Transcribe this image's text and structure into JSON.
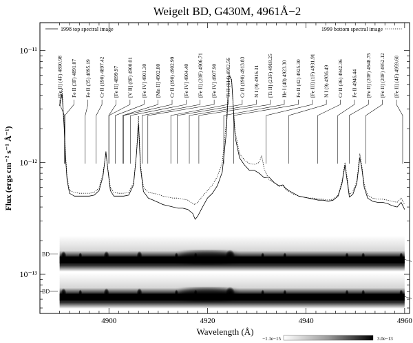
{
  "chart_data": {
    "type": "line",
    "title": "Weigelt BD, G430M, 4961Å−2",
    "xlabel": "Wavelength (Å)",
    "ylabel": "Flux (ergs cm⁻² s⁻¹ Å⁻¹)",
    "xlim": [
      4886,
      4961
    ],
    "ylim_log10": [
      -13.35,
      -10.75
    ],
    "y_log_scale": true,
    "x_ticks": [
      4900,
      4920,
      4940,
      4960
    ],
    "y_ticks": [
      {
        "label": "10⁻¹¹",
        "value": 1e-11
      },
      {
        "label": "10⁻¹²",
        "value": 1e-12
      },
      {
        "label": "10⁻¹³",
        "value": 1e-13
      }
    ],
    "legend": {
      "left": "1998 top spectral image",
      "right": "1999 bottom spectral image",
      "placement": "top"
    },
    "series": [
      {
        "name": "1998 top spectral image",
        "style": "solid",
        "x": [
          4890.0,
          4890.5,
          4890.9,
          4891.2,
          4891.5,
          4892,
          4893,
          4894,
          4895,
          4896,
          4897,
          4898,
          4898.8,
          4899.4,
          4899.8,
          4900.3,
          4901,
          4902,
          4903,
          4904,
          4905,
          4905.6,
          4906.0,
          4906.4,
          4907,
          4908,
          4909,
          4910,
          4911,
          4912,
          4913,
          4914,
          4915,
          4916,
          4917,
          4917.5,
          4918,
          4919,
          4920,
          4921,
          4922,
          4923,
          4923.8,
          4924.4,
          4924.9,
          4925.6,
          4926.5,
          4927.5,
          4928.5,
          4929.5,
          4930.5,
          4931.5,
          4932.5,
          4933.5,
          4934.5,
          4935.3,
          4935.8,
          4936.5,
          4937.5,
          4938.5,
          4939.5,
          4940.5,
          4941.5,
          4942.5,
          4943.5,
          4944.5,
          4945.5,
          4946.5,
          4947.3,
          4947.9,
          4948.3,
          4948.8,
          4949.5,
          4950.3,
          4950.9,
          4951.3,
          4951.8,
          4952.5,
          4953.5,
          4954.5,
          4955.5,
          4956.5,
          4957.5,
          4958.5,
          4959.3,
          4960
        ],
        "y": [
          3.2e-12,
          4.1e-12,
          2.1e-12,
          1.1e-12,
          7e-13,
          5.3e-13,
          5e-13,
          5e-13,
          5e-13,
          5e-13,
          5.1e-13,
          5.6e-13,
          7.5e-13,
          1.25e-12,
          8.5e-13,
          5.6e-13,
          5e-13,
          5e-13,
          5e-13,
          5.1e-13,
          6.3e-13,
          1.2e-12,
          2.2e-12,
          9e-13,
          5.5e-13,
          4.8e-13,
          4.6e-13,
          4.4e-13,
          4.2e-13,
          4.1e-13,
          4e-13,
          3.9e-13,
          3.9e-13,
          3.8e-13,
          3.5e-13,
          3.1e-13,
          3.3e-13,
          4e-13,
          4.8e-13,
          5.3e-13,
          6.2e-13,
          8.2e-13,
          1.8e-12,
          6e-12,
          5.5e-12,
          1.7e-12,
          1.1e-12,
          9.5e-13,
          8.5e-13,
          8.5e-13,
          8e-13,
          7.3e-13,
          7.4e-13,
          6.6e-13,
          6.2e-13,
          6.3e-13,
          5.9e-13,
          5.6e-13,
          5.3e-13,
          5e-13,
          4.9e-13,
          4.8e-13,
          4.7e-13,
          4.6e-13,
          4.6e-13,
          4.5e-13,
          4.6e-13,
          5e-13,
          6.5e-13,
          9.5e-13,
          7e-13,
          4.9e-13,
          5.2e-13,
          6.5e-13,
          1.1e-12,
          9e-13,
          6e-13,
          4.8e-13,
          4.5e-13,
          4.4e-13,
          4.4e-13,
          4.3e-13,
          4.1e-13,
          4e-13,
          4.4e-13,
          3.8e-13
        ]
      },
      {
        "name": "1999 bottom spectral image",
        "style": "dotted",
        "x": [
          4890.0,
          4890.5,
          4890.9,
          4891.2,
          4891.5,
          4892,
          4893,
          4894,
          4895,
          4896,
          4897,
          4898,
          4898.8,
          4899.4,
          4899.8,
          4900.3,
          4901,
          4902,
          4903,
          4904,
          4905,
          4905.6,
          4906.0,
          4906.4,
          4907,
          4908,
          4909,
          4910,
          4911,
          4912,
          4913,
          4914,
          4915,
          4916,
          4917,
          4917.5,
          4918,
          4919,
          4920,
          4921,
          4922,
          4923,
          4923.8,
          4924.4,
          4924.9,
          4925.6,
          4926.5,
          4927.5,
          4928.5,
          4929.5,
          4930.5,
          4931.0,
          4931.5,
          4932.5,
          4933.5,
          4934.5,
          4935.3,
          4935.8,
          4936.5,
          4937.5,
          4938.5,
          4939.5,
          4940.5,
          4941.5,
          4942.5,
          4943.5,
          4944.5,
          4945.5,
          4946.5,
          4947.3,
          4947.9,
          4948.3,
          4948.8,
          4949.5,
          4950.3,
          4950.9,
          4951.3,
          4951.8,
          4952.5,
          4953.5,
          4954.5,
          4955.5,
          4956.5,
          4957.5,
          4958.5,
          4959.3,
          4960
        ],
        "y": [
          3.3e-12,
          4.6e-12,
          2.2e-12,
          1.2e-12,
          7.5e-13,
          5.6e-13,
          5.4e-13,
          5.3e-13,
          5.3e-13,
          5.3e-13,
          5.4e-13,
          5.9e-13,
          8e-13,
          1.2e-12,
          8.8e-13,
          6e-13,
          5.4e-13,
          5.3e-13,
          5.3e-13,
          5.4e-13,
          6.6e-13,
          1.2e-12,
          2.6e-12,
          9.5e-13,
          6e-13,
          5.4e-13,
          5.3e-13,
          5.2e-13,
          5e-13,
          4.9e-13,
          4.8e-13,
          4.8e-13,
          4.7e-13,
          4.6e-13,
          4.3e-13,
          4.2e-13,
          4.4e-13,
          5e-13,
          5.6e-13,
          6.3e-13,
          7.5e-13,
          1e-12,
          2.2e-12,
          6.3e-12,
          5.3e-12,
          1.9e-12,
          1.2e-12,
          1.05e-12,
          9.8e-13,
          9.6e-13,
          1e-12,
          1.15e-12,
          8.8e-13,
          7e-13,
          6.7e-13,
          6.1e-13,
          6.2e-13,
          5.8e-13,
          5.5e-13,
          5.2e-13,
          5e-13,
          4.9e-13,
          4.8e-13,
          4.8e-13,
          4.7e-13,
          4.7e-13,
          4.6e-13,
          4.7e-13,
          5.1e-13,
          6.8e-13,
          1e-12,
          7.5e-13,
          5.2e-13,
          5.5e-13,
          6.8e-13,
          1.2e-12,
          9.5e-13,
          6.4e-13,
          5.1e-13,
          4.8e-13,
          4.7e-13,
          4.7e-13,
          4.6e-13,
          4.5e-13,
          4.4e-13,
          4.8e-13,
          4.2e-13
        ]
      }
    ],
    "line_ids": [
      {
        "label": "[Fe II]  (4F) 4890.98",
        "wl": 4890.98
      },
      {
        "label": "Fe II  (3F) 4891.07",
        "wl": 4891.07
      },
      {
        "label": "Fe II  (35) 4895.19",
        "wl": 4895.19
      },
      {
        "label": "Cr II (190) 4897.42",
        "wl": 4897.42
      },
      {
        "label": "[Fe II] 4899.97",
        "wl": 4899.97
      },
      {
        "label": "[V II]  (8F) 4900.01",
        "wl": 4900.01
      },
      {
        "label": "[Fe IV] 4901.30",
        "wl": 4901.3
      },
      {
        "label": "[Mn II] 4902.80",
        "wl": 4902.8
      },
      {
        "label": "Cr II (190) 4902.99",
        "wl": 4902.99
      },
      {
        "label": "[Fe IV] 4904.40",
        "wl": 4904.4
      },
      {
        "label": "[Fe II]  (20F) 4906.71",
        "wl": 4906.71
      },
      {
        "label": "[Fe IV] 4907.90",
        "wl": 4907.9
      },
      {
        "label": "Ti II  (114) 4912.56",
        "wl": 4912.56
      },
      {
        "label": "Cr II (190) 4913.83",
        "wl": 4913.83
      },
      {
        "label": "N I  (9) 4916.31",
        "wl": 4916.31
      },
      {
        "label": "[Ti II]  (23F) 4918.25",
        "wl": 4918.25
      },
      {
        "label": "He I  (48) 4923.30",
        "wl": 4923.3
      },
      {
        "label": "Fe II  (42) 4925.30",
        "wl": 4925.3
      },
      {
        "label": "[Fe III]  (1F) 4931.91",
        "wl": 4931.91
      },
      {
        "label": "N I  (9) 4936.49",
        "wl": 4936.49
      },
      {
        "label": "Cr II (36) 4942.36",
        "wl": 4942.36
      },
      {
        "label": "Fe II 4946.44",
        "wl": 4946.44
      },
      {
        "label": "[Fe II]  (20F) 4948.75",
        "wl": 4948.75
      },
      {
        "label": "[Fe II]  (20F) 4952.12",
        "wl": 4952.12
      },
      {
        "label": "[Fe II]  (4F) 4959.60",
        "wl": 4959.6
      }
    ],
    "spectral_images": {
      "side_labels_left": [
        "BD",
        "BD"
      ],
      "side_labels_right": [
        "A",
        "A"
      ],
      "emission_knots_wl": [
        4890.8,
        4894.2,
        4899.5,
        4906.2,
        4913.7,
        4917.6,
        4924.6,
        4931.2,
        4935.7,
        4948.3,
        4951.6,
        4959.3
      ]
    },
    "colorbar": {
      "min_label": "−1.1e−15",
      "max_label": "3.0e−13"
    }
  }
}
